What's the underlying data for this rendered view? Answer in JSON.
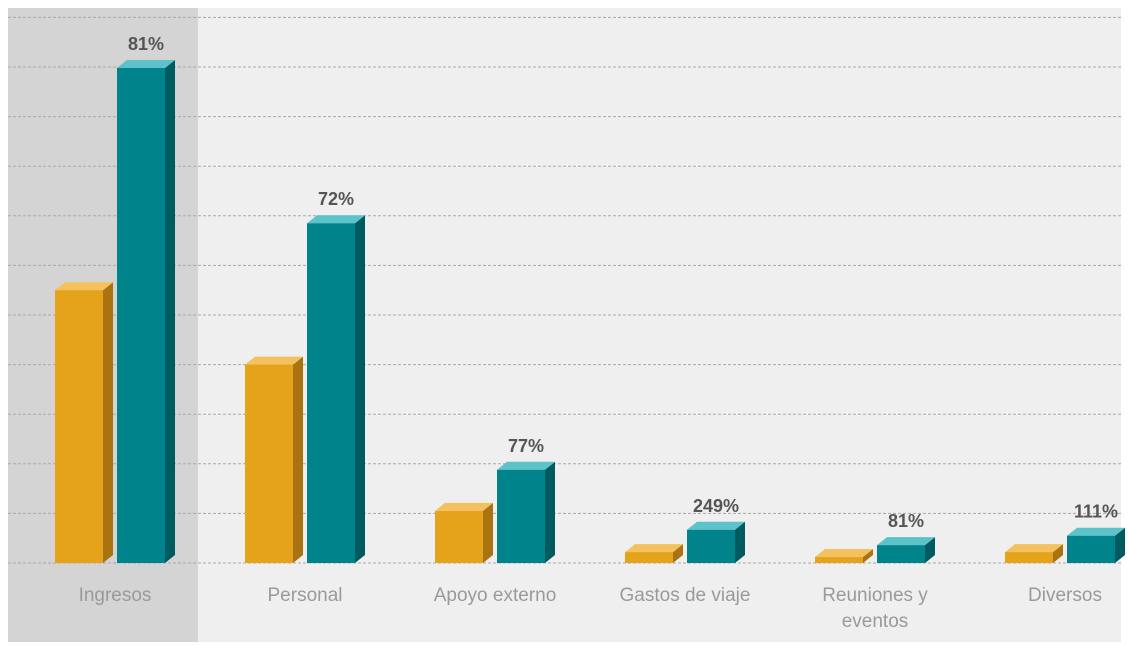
{
  "chart_data": {
    "type": "bar",
    "categories": [
      "Ingresos",
      "Personal",
      "Apoyo externo",
      "Gastos de viaje",
      "Reuniones y eventos",
      "Diversos"
    ],
    "category_lines": [
      [
        "Ingresos"
      ],
      [
        "Personal"
      ],
      [
        "Apoyo externo"
      ],
      [
        "Gastos de viaje"
      ],
      [
        "Reuniones y",
        "eventos"
      ],
      [
        "Diversos"
      ]
    ],
    "series": [
      {
        "values": [
          55,
          40,
          10.5,
          2.2,
          1.2,
          2.2
        ]
      },
      {
        "values": [
          99.8,
          68.5,
          18.8,
          6.7,
          3.6,
          5.5
        ]
      }
    ],
    "data_labels": [
      "81%",
      "72%",
      "77%",
      "249%",
      "81%",
      "111%"
    ],
    "highlighted_category": "Ingresos",
    "ylim": [
      0,
      110
    ],
    "grid": true,
    "title": "",
    "xlabel": "",
    "ylabel": ""
  },
  "colors": {
    "series_1_front": "#E4A31B",
    "series_1_side": "#A87310",
    "series_1_top": "#F3C15E",
    "series_2_front": "#00838A",
    "series_2_side": "#005B60",
    "series_2_top": "#5CC3CB",
    "plot_background": "#EFEFEF",
    "highlight_background": "#D4D4D4",
    "gridline": "#A8A8A8",
    "label_text": "#9A9A9A",
    "value_text": "#555555"
  }
}
